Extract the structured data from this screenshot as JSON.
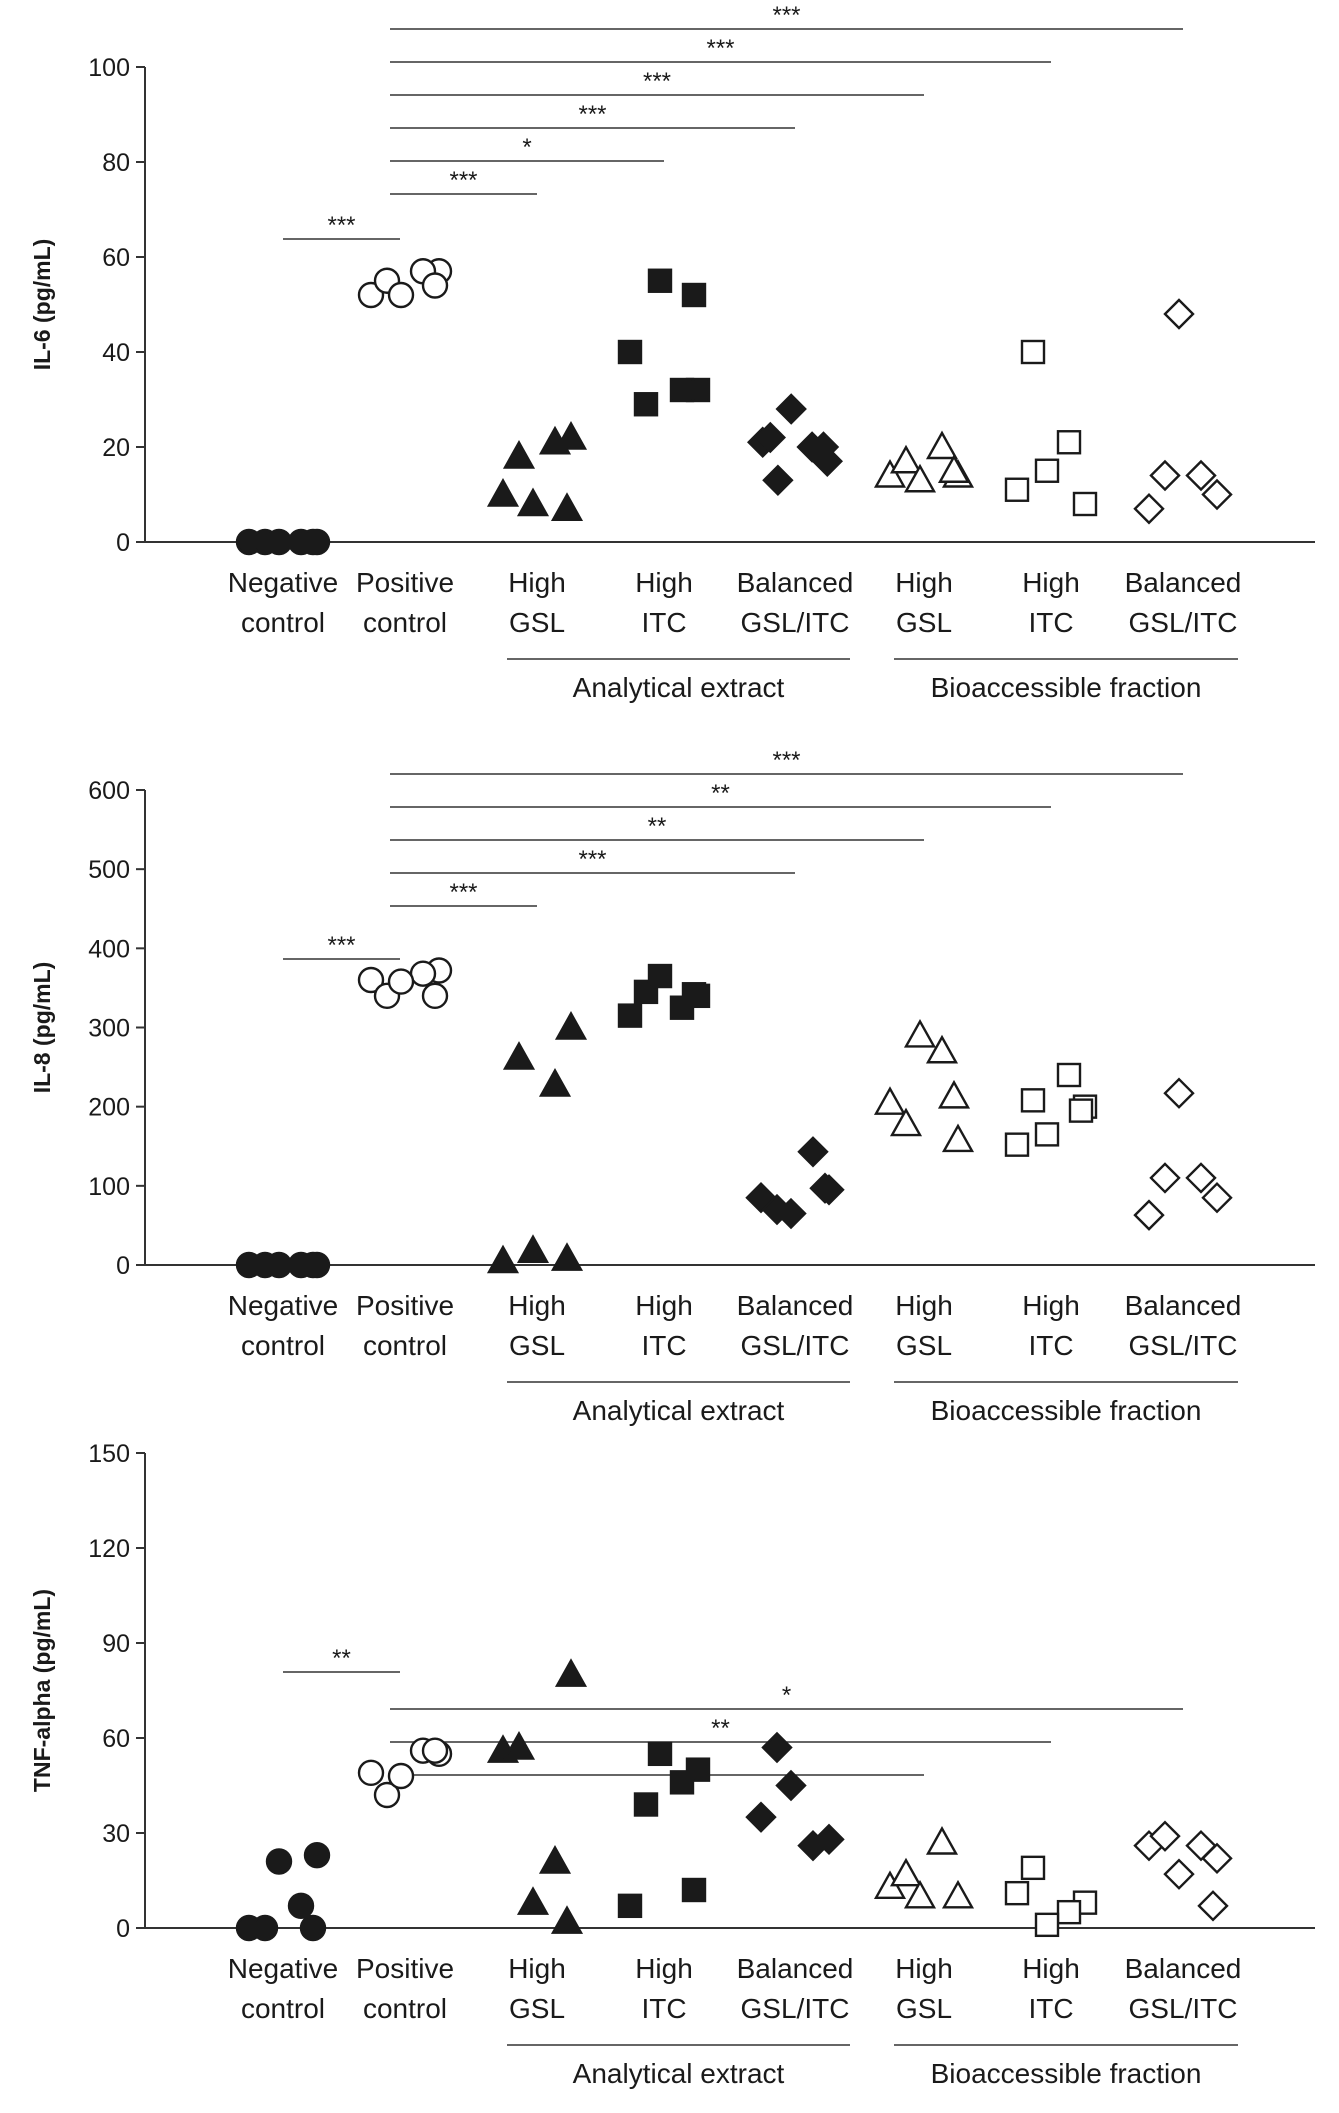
{
  "categories": [
    {
      "line1": "Negative",
      "line2": "control",
      "marker": "circle",
      "fill": "filled"
    },
    {
      "line1": "Positive",
      "line2": "control",
      "marker": "circle",
      "fill": "open"
    },
    {
      "line1": "High",
      "line2": "GSL",
      "marker": "triangle",
      "fill": "filled"
    },
    {
      "line1": "High",
      "line2": "ITC",
      "marker": "square",
      "fill": "filled"
    },
    {
      "line1": "Balanced",
      "line2": "GSL/ITC",
      "marker": "diamond",
      "fill": "filled"
    },
    {
      "line1": "High",
      "line2": "GSL",
      "marker": "triangle",
      "fill": "open"
    },
    {
      "line1": "High",
      "line2": "ITC",
      "marker": "square",
      "fill": "open"
    },
    {
      "line1": "Balanced",
      "line2": "GSL/ITC",
      "marker": "diamond",
      "fill": "open"
    }
  ],
  "groups": [
    {
      "label": "Analytical extract",
      "from": 2,
      "to": 4
    },
    {
      "label": "Bioaccessible fraction",
      "from": 5,
      "to": 7
    }
  ],
  "colors": {
    "ink": "#1a1a1a",
    "background": "#ffffff"
  },
  "chart_data": [
    {
      "type": "scatter",
      "ylabel": "IL-6 (pg/mL)",
      "ylim": [
        0,
        100
      ],
      "yticks": [
        0,
        20,
        40,
        60,
        80,
        100
      ],
      "series": [
        {
          "name": "Negative control",
          "values": [
            0,
            0,
            0,
            0,
            0,
            0
          ]
        },
        {
          "name": "Positive control",
          "values": [
            52,
            57,
            55,
            57,
            52,
            54
          ]
        },
        {
          "name": "High GSL (Analytical extract)",
          "values": [
            10,
            22,
            18,
            21,
            8,
            7
          ]
        },
        {
          "name": "High ITC (Analytical extract)",
          "values": [
            40,
            32,
            29,
            32,
            55,
            52
          ]
        },
        {
          "name": "Balanced GSL/ITC (Analytical extract)",
          "values": [
            21,
            17,
            13,
            20,
            28,
            20,
            22
          ]
        },
        {
          "name": "High GSL (Bioaccessible fraction)",
          "values": [
            14,
            14,
            17,
            20,
            13,
            15
          ]
        },
        {
          "name": "High ITC (Bioaccessible fraction)",
          "values": [
            11,
            8,
            40,
            21,
            15
          ]
        },
        {
          "name": "Balanced GSL/ITC (Bioaccessible fraction)",
          "values": [
            7,
            10,
            14,
            14,
            48
          ]
        }
      ],
      "significance": [
        {
          "from": 0,
          "to": 1,
          "label": "***"
        },
        {
          "from": 1,
          "to": 2,
          "label": "***"
        },
        {
          "from": 1,
          "to": 3,
          "label": "*"
        },
        {
          "from": 1,
          "to": 4,
          "label": "***"
        },
        {
          "from": 1,
          "to": 5,
          "label": "***"
        },
        {
          "from": 1,
          "to": 6,
          "label": "***"
        },
        {
          "from": 1,
          "to": 7,
          "label": "***"
        }
      ]
    },
    {
      "type": "scatter",
      "ylabel": "IL-8 (pg/mL)",
      "ylim": [
        0,
        600
      ],
      "yticks": [
        0,
        100,
        200,
        300,
        400,
        500,
        600
      ],
      "series": [
        {
          "name": "Negative control",
          "values": [
            0,
            0,
            0,
            0,
            0,
            0
          ]
        },
        {
          "name": "Positive control",
          "values": [
            360,
            372,
            340,
            368,
            358,
            340
          ]
        },
        {
          "name": "High GSL (Analytical extract)",
          "values": [
            5,
            300,
            262,
            228,
            18,
            8
          ]
        },
        {
          "name": "High ITC (Analytical extract)",
          "values": [
            315,
            340,
            345,
            325,
            365,
            342
          ]
        },
        {
          "name": "Balanced GSL/ITC (Analytical extract)",
          "values": [
            85,
            95,
            70,
            143,
            65,
            97
          ]
        },
        {
          "name": "High GSL (Bioaccessible fraction)",
          "values": [
            205,
            158,
            178,
            270,
            290,
            213
          ]
        },
        {
          "name": "High ITC (Bioaccessible fraction)",
          "values": [
            152,
            200,
            208,
            240,
            165,
            195
          ]
        },
        {
          "name": "Balanced GSL/ITC (Bioaccessible fraction)",
          "values": [
            63,
            85,
            110,
            110,
            217
          ]
        }
      ],
      "significance": [
        {
          "from": 0,
          "to": 1,
          "label": "***"
        },
        {
          "from": 1,
          "to": 2,
          "label": "***"
        },
        {
          "from": 1,
          "to": 4,
          "label": "***"
        },
        {
          "from": 1,
          "to": 5,
          "label": "**"
        },
        {
          "from": 1,
          "to": 6,
          "label": "**"
        },
        {
          "from": 1,
          "to": 7,
          "label": "***"
        }
      ]
    },
    {
      "type": "scatter",
      "ylabel": "TNF-alpha (pg/mL)",
      "ylim": [
        0,
        150
      ],
      "yticks": [
        0,
        30,
        60,
        90,
        120,
        150
      ],
      "series": [
        {
          "name": "Negative control",
          "values": [
            0,
            23,
            0,
            7,
            21,
            0
          ]
        },
        {
          "name": "Positive control",
          "values": [
            49,
            55,
            42,
            56,
            48,
            56
          ]
        },
        {
          "name": "High GSL (Analytical extract)",
          "values": [
            56,
            80,
            57,
            21,
            8,
            2
          ]
        },
        {
          "name": "High ITC (Analytical extract)",
          "values": [
            7,
            50,
            39,
            46,
            55,
            12
          ]
        },
        {
          "name": "Balanced GSL/ITC (Analytical extract)",
          "values": [
            35,
            28,
            57,
            26,
            45
          ]
        },
        {
          "name": "High GSL (Bioaccessible fraction)",
          "values": [
            13,
            10,
            17,
            27,
            10
          ]
        },
        {
          "name": "High ITC (Bioaccessible fraction)",
          "values": [
            11,
            8,
            19,
            5,
            1
          ]
        },
        {
          "name": "Balanced GSL/ITC (Bioaccessible fraction)",
          "values": [
            26,
            22,
            29,
            26,
            17,
            7
          ]
        }
      ],
      "significance": [
        {
          "from": 0,
          "to": 1,
          "label": "**"
        },
        {
          "from": 1,
          "to": 5,
          "label": "**"
        },
        {
          "from": 1,
          "to": 6,
          "label": "**"
        },
        {
          "from": 1,
          "to": 7,
          "label": "*"
        }
      ]
    }
  ]
}
